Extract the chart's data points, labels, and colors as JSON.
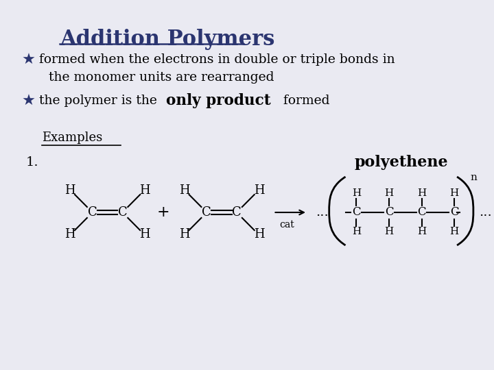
{
  "background_color": "#eaeaf2",
  "title": "Addition Polymers",
  "title_color": "#2b3570",
  "title_fontsize": 22,
  "bullet_color": "#2b3570",
  "text_color": "#000000",
  "bullet1_line1": "formed when the electrons in double or triple bonds in",
  "bullet1_line2": "the monomer units are rearranged",
  "bullet2_part1": "the polymer is the ",
  "bullet2_bold": "only product",
  "bullet2_end": "    formed",
  "examples_label": "Examples",
  "label_1": "1.",
  "dots": "...",
  "n_label": "n",
  "polyethene": "polyethene"
}
